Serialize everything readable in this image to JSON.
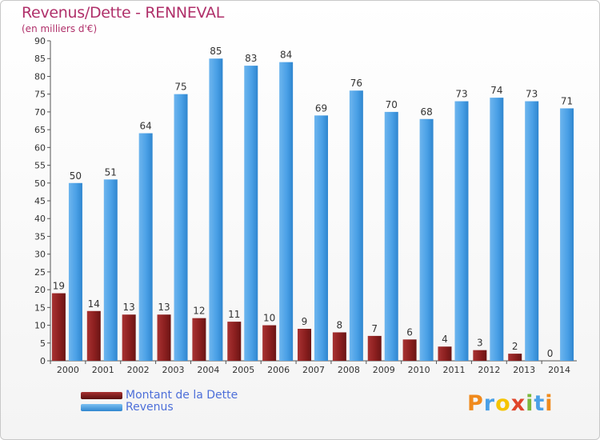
{
  "title": "Revenus/Dette - RENNEVAL",
  "subtitle": "(en milliers d'€)",
  "colors": {
    "debt": "#8b1f1f",
    "revenue": "#4aa0e6",
    "title": "#b0306a"
  },
  "chart_data": {
    "type": "bar",
    "title": "Revenus/Dette - RENNEVAL",
    "subtitle": "(en milliers d'€)",
    "categories": [
      "2000",
      "2001",
      "2002",
      "2003",
      "2004",
      "2005",
      "2006",
      "2007",
      "2008",
      "2009",
      "2010",
      "2011",
      "2012",
      "2013",
      "2014"
    ],
    "series": [
      {
        "name": "Montant de la Dette",
        "values": [
          19,
          14,
          13,
          13,
          12,
          11,
          10,
          9,
          8,
          7,
          6,
          4,
          3,
          2,
          0
        ]
      },
      {
        "name": "Revenus",
        "values": [
          50,
          51,
          64,
          75,
          85,
          83,
          84,
          69,
          76,
          70,
          68,
          73,
          74,
          73,
          71
        ]
      }
    ],
    "ylim": [
      0,
      90
    ],
    "yticks": [
      0,
      5,
      10,
      15,
      20,
      25,
      30,
      35,
      40,
      45,
      50,
      55,
      60,
      65,
      70,
      75,
      80,
      85,
      90
    ],
    "grid": false,
    "legend": "bottom-left"
  },
  "legend": {
    "items": [
      {
        "label": "Montant de la Dette"
      },
      {
        "label": "Revenus"
      }
    ]
  },
  "logo": {
    "letters": [
      "P",
      "r",
      "o",
      "x",
      "i",
      "t",
      "i"
    ]
  }
}
